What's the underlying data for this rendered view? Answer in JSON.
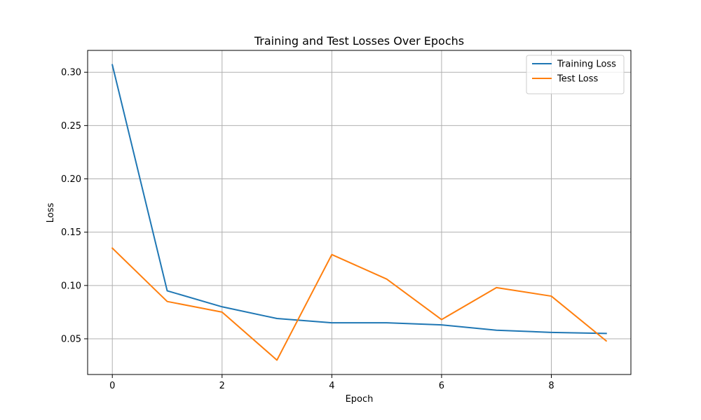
{
  "chart_data": {
    "type": "line",
    "title": "Training and Test Losses Over Epochs",
    "xlabel": "Epoch",
    "ylabel": "Loss",
    "xlim": [
      -0.45,
      9.45
    ],
    "ylim": [
      0.0165,
      0.3205
    ],
    "x_ticks": [
      0,
      2,
      4,
      6,
      8
    ],
    "y_ticks": [
      0.05,
      0.1,
      0.15,
      0.2,
      0.25,
      0.3
    ],
    "x_tick_labels": [
      "0",
      "2",
      "4",
      "6",
      "8"
    ],
    "y_tick_labels": [
      "0.05",
      "0.10",
      "0.15",
      "0.20",
      "0.25",
      "0.30"
    ],
    "grid": true,
    "legend_position": "top-right",
    "x": [
      0,
      1,
      2,
      3,
      4,
      5,
      6,
      7,
      8,
      9
    ],
    "series": [
      {
        "name": "Training Loss",
        "color": "#1f77b4",
        "values": [
          0.307,
          0.095,
          0.08,
          0.069,
          0.065,
          0.065,
          0.063,
          0.058,
          0.056,
          0.055
        ]
      },
      {
        "name": "Test Loss",
        "color": "#ff7f0e",
        "values": [
          0.135,
          0.085,
          0.075,
          0.03,
          0.129,
          0.106,
          0.068,
          0.098,
          0.09,
          0.048
        ]
      }
    ]
  }
}
